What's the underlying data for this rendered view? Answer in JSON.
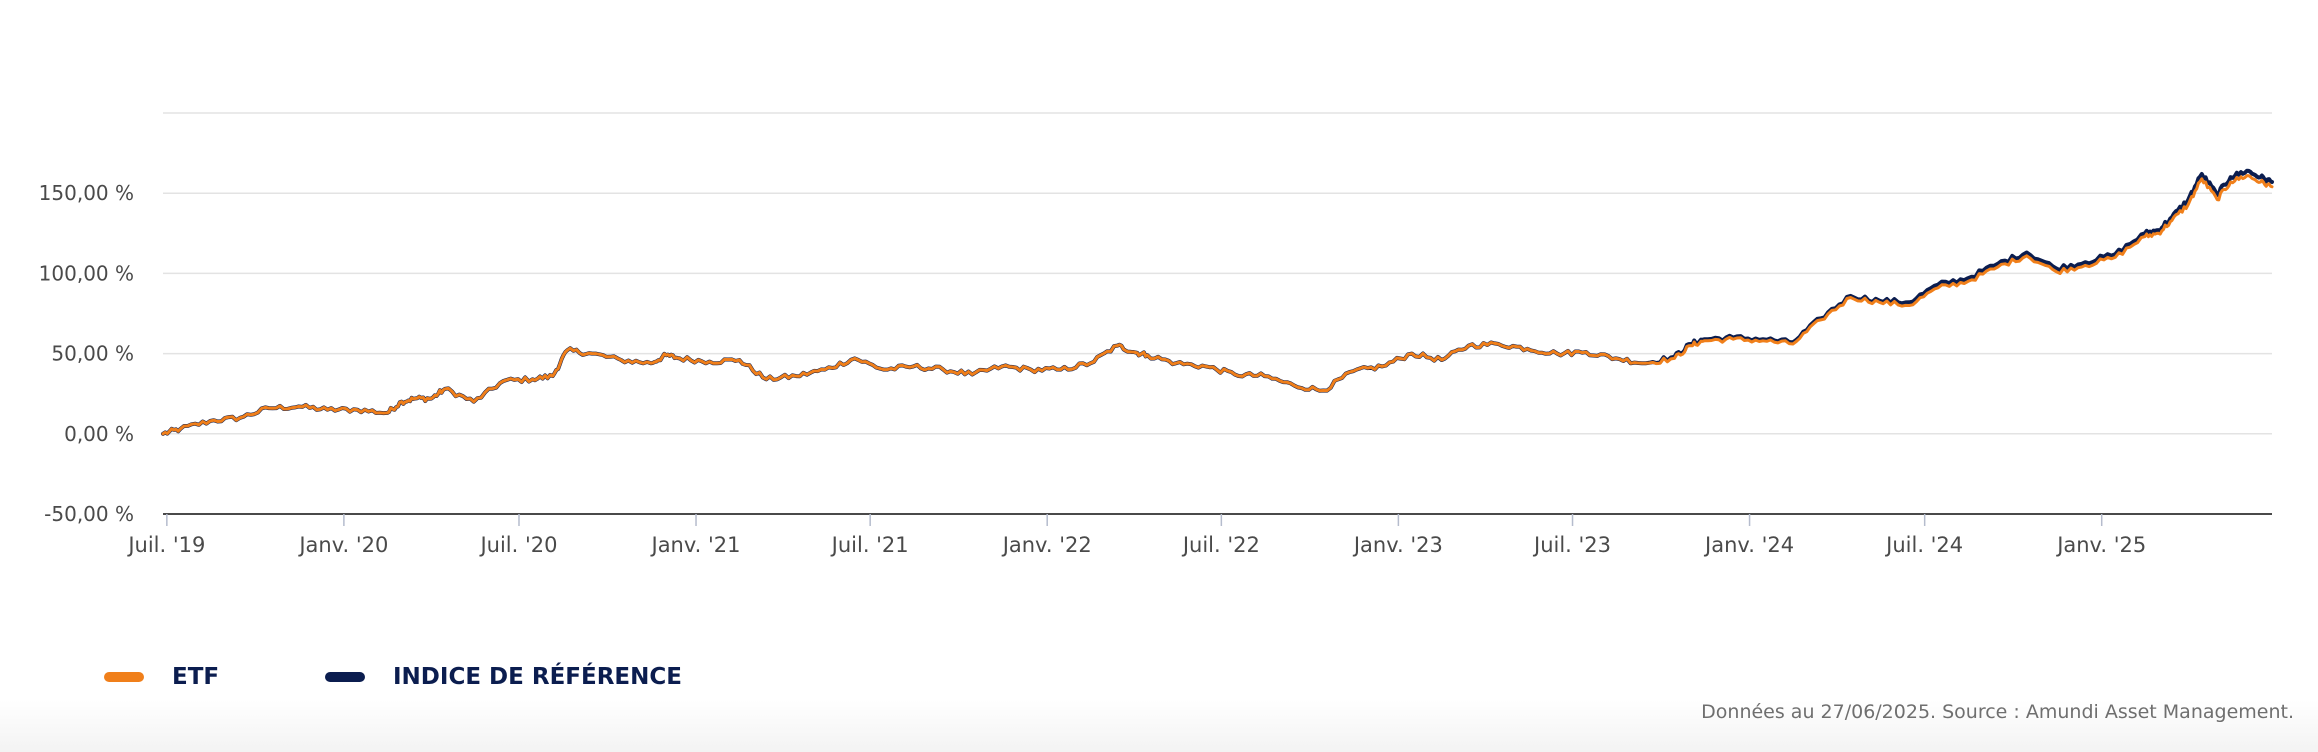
{
  "chart_data": {
    "type": "line",
    "title": "",
    "xlabel": "",
    "ylabel": "",
    "x_range": [
      "2019-06-27",
      "2025-06-27"
    ],
    "ylim": [
      -50,
      200
    ],
    "y_ticks": [
      "-50,00 %",
      "0,00 %",
      "50,00 %",
      "100,00 %",
      "150,00 %"
    ],
    "y_tick_values": [
      -50,
      0,
      50,
      100,
      150
    ],
    "x_ticks": [
      "Juil. '19",
      "Janv. '20",
      "Juil. '20",
      "Janv. '21",
      "Juil. '21",
      "Janv. '22",
      "Juil. '22",
      "Janv. '23",
      "Juil. '23",
      "Janv. '24",
      "Juil. '24",
      "Janv. '25"
    ],
    "x_tick_dates": [
      "2019-07-01",
      "2020-01-01",
      "2020-07-01",
      "2021-01-01",
      "2021-07-01",
      "2022-01-01",
      "2022-07-01",
      "2023-01-01",
      "2023-07-01",
      "2024-01-01",
      "2024-07-01",
      "2025-01-01"
    ],
    "grid": true,
    "legend_position": "bottom-left",
    "series": [
      {
        "name": "INDICE DE RÉFÉRENCE",
        "color": "#0b1d4f",
        "x": [
          "2019-06-27",
          "2019-07-15",
          "2019-08-15",
          "2019-09-15",
          "2019-10-15",
          "2019-11-15",
          "2019-12-15",
          "2020-01-15",
          "2020-02-15",
          "2020-03-01",
          "2020-03-15",
          "2020-04-01",
          "2020-04-15",
          "2020-05-15",
          "2020-06-15",
          "2020-07-15",
          "2020-08-05",
          "2020-08-20",
          "2020-09-15",
          "2020-10-15",
          "2020-11-15",
          "2020-12-01",
          "2020-12-15",
          "2021-01-15",
          "2021-02-15",
          "2021-03-15",
          "2021-04-15",
          "2021-05-15",
          "2021-06-15",
          "2021-07-15",
          "2021-08-15",
          "2021-09-15",
          "2021-10-15",
          "2021-11-15",
          "2021-12-15",
          "2022-01-15",
          "2022-02-15",
          "2022-03-15",
          "2022-04-01",
          "2022-04-15",
          "2022-05-15",
          "2022-06-15",
          "2022-07-15",
          "2022-08-15",
          "2022-09-15",
          "2022-10-15",
          "2022-11-15",
          "2022-12-15",
          "2023-01-15",
          "2023-02-15",
          "2023-03-15",
          "2023-04-15",
          "2023-05-15",
          "2023-06-15",
          "2023-07-15",
          "2023-08-15",
          "2023-09-15",
          "2023-10-15",
          "2023-11-01",
          "2023-11-15",
          "2023-12-15",
          "2024-01-15",
          "2024-02-15",
          "2024-03-15",
          "2024-04-15",
          "2024-05-15",
          "2024-06-15",
          "2024-07-15",
          "2024-08-15",
          "2024-09-15",
          "2024-10-15",
          "2024-11-15",
          "2024-12-15",
          "2025-01-15",
          "2025-02-15",
          "2025-03-01",
          "2025-03-15",
          "2025-04-01",
          "2025-04-15",
          "2025-05-01",
          "2025-05-15",
          "2025-06-01",
          "2025-06-15",
          "2025-06-27"
        ],
        "values": [
          0,
          3,
          8,
          10,
          16,
          17,
          15,
          15,
          13,
          20,
          22,
          22,
          28,
          20,
          33,
          34,
          36,
          52,
          50,
          46,
          44,
          49,
          47,
          45,
          46,
          34,
          36,
          40,
          47,
          40,
          42,
          40,
          37,
          42,
          40,
          40,
          44,
          55,
          51,
          49,
          44,
          42,
          37,
          36,
          30,
          27,
          39,
          42,
          50,
          46,
          55,
          56,
          53,
          50,
          51,
          47,
          44,
          48,
          56,
          59,
          60,
          59,
          57,
          72,
          86,
          83,
          82,
          93,
          97,
          106,
          113,
          103,
          107,
          112,
          125,
          127,
          135,
          146,
          162,
          149,
          160,
          164,
          160,
          157
        ]
      },
      {
        "name": "ETF",
        "color": "#f07f1a",
        "x": [
          "2019-06-27",
          "2019-07-15",
          "2019-08-15",
          "2019-09-15",
          "2019-10-15",
          "2019-11-15",
          "2019-12-15",
          "2020-01-15",
          "2020-02-15",
          "2020-03-01",
          "2020-03-15",
          "2020-04-01",
          "2020-04-15",
          "2020-05-15",
          "2020-06-15",
          "2020-07-15",
          "2020-08-05",
          "2020-08-20",
          "2020-09-15",
          "2020-10-15",
          "2020-11-15",
          "2020-12-01",
          "2020-12-15",
          "2021-01-15",
          "2021-02-15",
          "2021-03-15",
          "2021-04-15",
          "2021-05-15",
          "2021-06-15",
          "2021-07-15",
          "2021-08-15",
          "2021-09-15",
          "2021-10-15",
          "2021-11-15",
          "2021-12-15",
          "2022-01-15",
          "2022-02-15",
          "2022-03-15",
          "2022-04-01",
          "2022-04-15",
          "2022-05-15",
          "2022-06-15",
          "2022-07-15",
          "2022-08-15",
          "2022-09-15",
          "2022-10-15",
          "2022-11-15",
          "2022-12-15",
          "2023-01-15",
          "2023-02-15",
          "2023-03-15",
          "2023-04-15",
          "2023-05-15",
          "2023-06-15",
          "2023-07-15",
          "2023-08-15",
          "2023-09-15",
          "2023-10-15",
          "2023-11-01",
          "2023-11-15",
          "2023-12-15",
          "2024-01-15",
          "2024-02-15",
          "2024-03-15",
          "2024-04-15",
          "2024-05-15",
          "2024-06-15",
          "2024-07-15",
          "2024-08-15",
          "2024-09-15",
          "2024-10-15",
          "2024-11-15",
          "2024-12-15",
          "2025-01-15",
          "2025-02-15",
          "2025-03-01",
          "2025-03-15",
          "2025-04-01",
          "2025-04-15",
          "2025-05-01",
          "2025-05-15",
          "2025-06-01",
          "2025-06-15",
          "2025-06-27"
        ],
        "values": [
          0,
          3,
          8,
          10,
          16,
          17,
          15,
          15,
          13,
          20,
          22,
          22,
          28,
          20,
          33,
          34,
          36,
          52,
          50,
          46,
          44,
          49,
          47,
          45,
          46,
          34,
          36,
          40,
          47,
          40,
          42,
          40,
          37,
          42,
          40,
          40,
          44,
          55,
          51,
          49,
          44,
          42,
          37,
          36,
          30,
          27,
          39,
          42,
          50,
          46,
          55,
          56,
          53,
          50,
          51,
          47,
          44,
          47,
          55,
          58,
          59,
          58,
          56,
          71,
          85,
          82,
          80,
          91,
          95,
          104,
          111,
          101,
          105,
          110,
          123,
          125,
          133,
          143,
          159,
          146,
          157,
          161,
          157,
          154
        ]
      }
    ]
  },
  "legend": {
    "etf_label": "ETF",
    "index_label": "INDICE DE RÉFÉRENCE"
  },
  "footer": {
    "source": "Données au 27/06/2025. Source : Amundi Asset Management."
  }
}
